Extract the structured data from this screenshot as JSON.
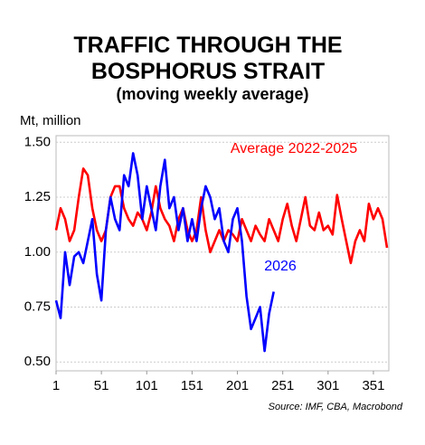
{
  "chart_data": {
    "type": "line",
    "title": "TRAFFIC THROUGH THE BOSPHORUS STRAIT",
    "subtitle": "(moving weekly average)",
    "y_label": "Mt, million",
    "source": "Source: IMF, CBA, Macrobond",
    "x": [
      1,
      6,
      11,
      16,
      21,
      26,
      31,
      36,
      41,
      46,
      51,
      56,
      61,
      66,
      71,
      76,
      81,
      86,
      91,
      96,
      101,
      106,
      111,
      116,
      121,
      126,
      131,
      136,
      141,
      146,
      151,
      156,
      161,
      166,
      171,
      176,
      181,
      186,
      191,
      196,
      201,
      206,
      211,
      216,
      221,
      226,
      231,
      236,
      241,
      246,
      251,
      256,
      261,
      266,
      271,
      276,
      281,
      286,
      291,
      296,
      301,
      306,
      311,
      316,
      321,
      326,
      331,
      336,
      341,
      346,
      351,
      356,
      361,
      366
    ],
    "series": [
      {
        "name": "Average 2022-2025",
        "color": "#ff0000",
        "values": [
          1.1,
          1.2,
          1.15,
          1.05,
          1.1,
          1.25,
          1.38,
          1.35,
          1.2,
          1.1,
          1.05,
          1.1,
          1.25,
          1.3,
          1.3,
          1.2,
          1.15,
          1.12,
          1.18,
          1.15,
          1.1,
          1.18,
          1.3,
          1.2,
          1.15,
          1.12,
          1.05,
          1.15,
          1.2,
          1.1,
          1.05,
          1.1,
          1.25,
          1.1,
          1.0,
          1.05,
          1.1,
          1.05,
          1.1,
          1.08,
          1.05,
          1.15,
          1.1,
          1.05,
          1.12,
          1.08,
          1.05,
          1.15,
          1.1,
          1.05,
          1.15,
          1.22,
          1.12,
          1.05,
          1.15,
          1.25,
          1.12,
          1.1,
          1.18,
          1.1,
          1.12,
          1.08,
          1.26,
          1.15,
          1.05,
          0.95,
          1.05,
          1.1,
          1.05,
          1.22,
          1.15,
          1.2,
          1.15,
          1.02
        ]
      },
      {
        "name": "2026",
        "color": "#0000ff",
        "values": [
          0.78,
          0.7,
          1.0,
          0.85,
          0.98,
          1.0,
          0.95,
          1.05,
          1.15,
          0.9,
          0.78,
          1.1,
          1.25,
          1.15,
          1.1,
          1.35,
          1.3,
          1.45,
          1.35,
          1.15,
          1.3,
          1.2,
          1.1,
          1.3,
          1.42,
          1.2,
          1.25,
          1.1,
          1.2,
          1.05,
          1.15,
          1.05,
          1.2,
          1.3,
          1.25,
          1.15,
          1.2,
          1.05,
          1.0,
          1.15,
          1.2,
          1.05,
          0.8,
          0.65,
          0.7,
          0.75,
          0.55,
          0.72,
          0.82,
          null,
          null,
          null,
          null,
          null,
          null,
          null,
          null,
          null,
          null,
          null,
          null,
          null,
          null,
          null,
          null,
          null,
          null,
          null,
          null,
          null,
          null,
          null,
          null,
          null
        ]
      }
    ],
    "xlim": [
      1,
      368
    ],
    "ylim": [
      0.46,
      1.53
    ],
    "xticks": [
      1,
      51,
      101,
      151,
      201,
      251,
      301,
      351
    ],
    "yticks": [
      {
        "value": 0.5,
        "label": "0.50"
      },
      {
        "value": 0.75,
        "label": "0.75"
      },
      {
        "value": 1,
        "label": "1.00"
      },
      {
        "value": 1.25,
        "label": "1.25"
      },
      {
        "value": 1.5,
        "label": "1.50"
      }
    ],
    "grid": true
  }
}
